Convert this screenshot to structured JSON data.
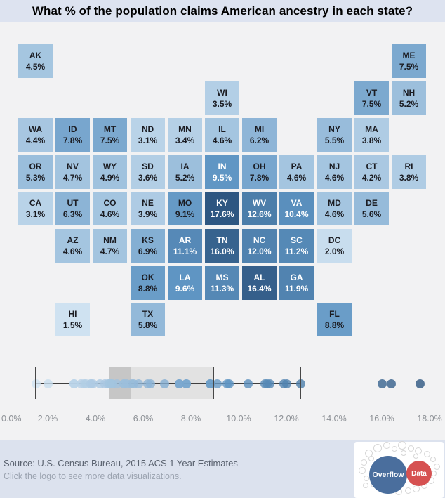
{
  "title": "What % of the population claims American ancestry in each state?",
  "chart_data": [
    {
      "type": "heatmap",
      "subtype": "us-state-tile-grid-map",
      "title": "What % of the population claims American ancestry in each state?",
      "value_format": "percent_one_decimal",
      "color_scale": {
        "min_value": 1.5,
        "mid_value": 9.5,
        "max_value": 17.6,
        "min_color": "#cfe2f1",
        "mid_color": "#6096c4",
        "max_color": "#2d5681",
        "white_text_threshold": 9.5
      },
      "states": [
        {
          "abbr": "AK",
          "value": 4.5,
          "col": 0,
          "row": 0
        },
        {
          "abbr": "ME",
          "value": 7.5,
          "col": 10,
          "row": 0
        },
        {
          "abbr": "WI",
          "value": 3.5,
          "col": 5,
          "row": 1
        },
        {
          "abbr": "VT",
          "value": 7.5,
          "col": 9,
          "row": 1
        },
        {
          "abbr": "NH",
          "value": 5.2,
          "col": 10,
          "row": 1
        },
        {
          "abbr": "WA",
          "value": 4.4,
          "col": 0,
          "row": 2
        },
        {
          "abbr": "ID",
          "value": 7.8,
          "col": 1,
          "row": 2
        },
        {
          "abbr": "MT",
          "value": 7.5,
          "col": 2,
          "row": 2
        },
        {
          "abbr": "ND",
          "value": 3.1,
          "col": 3,
          "row": 2
        },
        {
          "abbr": "MN",
          "value": 3.4,
          "col": 4,
          "row": 2
        },
        {
          "abbr": "IL",
          "value": 4.6,
          "col": 5,
          "row": 2
        },
        {
          "abbr": "MI",
          "value": 6.2,
          "col": 6,
          "row": 2
        },
        {
          "abbr": "NY",
          "value": 5.5,
          "col": 8,
          "row": 2
        },
        {
          "abbr": "MA",
          "value": 3.8,
          "col": 9,
          "row": 2
        },
        {
          "abbr": "OR",
          "value": 5.3,
          "col": 0,
          "row": 3
        },
        {
          "abbr": "NV",
          "value": 4.7,
          "col": 1,
          "row": 3
        },
        {
          "abbr": "WY",
          "value": 4.9,
          "col": 2,
          "row": 3
        },
        {
          "abbr": "SD",
          "value": 3.6,
          "col": 3,
          "row": 3
        },
        {
          "abbr": "IA",
          "value": 5.2,
          "col": 4,
          "row": 3
        },
        {
          "abbr": "IN",
          "value": 9.5,
          "col": 5,
          "row": 3
        },
        {
          "abbr": "OH",
          "value": 7.8,
          "col": 6,
          "row": 3
        },
        {
          "abbr": "PA",
          "value": 4.6,
          "col": 7,
          "row": 3
        },
        {
          "abbr": "NJ",
          "value": 4.6,
          "col": 8,
          "row": 3
        },
        {
          "abbr": "CT",
          "value": 4.2,
          "col": 9,
          "row": 3
        },
        {
          "abbr": "RI",
          "value": 3.8,
          "col": 10,
          "row": 3
        },
        {
          "abbr": "CA",
          "value": 3.1,
          "col": 0,
          "row": 4
        },
        {
          "abbr": "UT",
          "value": 6.3,
          "col": 1,
          "row": 4
        },
        {
          "abbr": "CO",
          "value": 4.6,
          "col": 2,
          "row": 4
        },
        {
          "abbr": "NE",
          "value": 3.9,
          "col": 3,
          "row": 4
        },
        {
          "abbr": "MO",
          "value": 9.1,
          "col": 4,
          "row": 4
        },
        {
          "abbr": "KY",
          "value": 17.6,
          "col": 5,
          "row": 4
        },
        {
          "abbr": "WV",
          "value": 12.6,
          "col": 6,
          "row": 4
        },
        {
          "abbr": "VA",
          "value": 10.4,
          "col": 7,
          "row": 4
        },
        {
          "abbr": "MD",
          "value": 4.6,
          "col": 8,
          "row": 4
        },
        {
          "abbr": "DE",
          "value": 5.6,
          "col": 9,
          "row": 4
        },
        {
          "abbr": "AZ",
          "value": 4.6,
          "col": 1,
          "row": 5
        },
        {
          "abbr": "NM",
          "value": 4.7,
          "col": 2,
          "row": 5
        },
        {
          "abbr": "KS",
          "value": 6.9,
          "col": 3,
          "row": 5
        },
        {
          "abbr": "AR",
          "value": 11.1,
          "col": 4,
          "row": 5
        },
        {
          "abbr": "TN",
          "value": 16.0,
          "col": 5,
          "row": 5
        },
        {
          "abbr": "NC",
          "value": 12.0,
          "col": 6,
          "row": 5
        },
        {
          "abbr": "SC",
          "value": 11.2,
          "col": 7,
          "row": 5
        },
        {
          "abbr": "DC",
          "value": 2.0,
          "col": 8,
          "row": 5
        },
        {
          "abbr": "OK",
          "value": 8.8,
          "col": 3,
          "row": 6
        },
        {
          "abbr": "LA",
          "value": 9.6,
          "col": 4,
          "row": 6
        },
        {
          "abbr": "MS",
          "value": 11.3,
          "col": 5,
          "row": 6
        },
        {
          "abbr": "AL",
          "value": 16.4,
          "col": 6,
          "row": 6
        },
        {
          "abbr": "GA",
          "value": 11.9,
          "col": 7,
          "row": 6
        },
        {
          "abbr": "HI",
          "value": 1.5,
          "col": 1,
          "row": 7
        },
        {
          "abbr": "TX",
          "value": 5.8,
          "col": 3,
          "row": 7
        },
        {
          "abbr": "FL",
          "value": 8.8,
          "col": 8,
          "row": 7
        }
      ]
    },
    {
      "type": "boxplot",
      "orientation": "horizontal",
      "axis": {
        "min": 0,
        "max": 18.6,
        "tick_step": 2,
        "tick_values": [
          0,
          2,
          4,
          6,
          8,
          10,
          12,
          14,
          16,
          18
        ],
        "tick_labels": [
          "0.0%",
          "2.0%",
          "4.0%",
          "6.0%",
          "8.0%",
          "10.0%",
          "12.0%",
          "14.0%",
          "16.0%",
          "18.0%"
        ]
      },
      "whisker_low": 1.5,
      "q1": 4.55,
      "median": 5.5,
      "q3": 8.95,
      "whisker_high": 12.6,
      "outliers": [
        16.0,
        16.4,
        17.6
      ],
      "points": "one dot per state value, colored by the map color scale"
    }
  ],
  "footer": {
    "source": "Source: U.S. Census Bureau, 2015 ACS 1 Year Estimates",
    "hint": "Click the logo to see more data visualizations.",
    "logo": {
      "primary_label": "Overflow",
      "secondary_label": "Data",
      "primary_color": "#4a6e9d",
      "secondary_color": "#d65151"
    }
  },
  "theme": {
    "band_background": "#dde3f0",
    "page_background": "#f2f2f3",
    "box_light": "#e2e2e2",
    "box_dark": "#c6c6c6",
    "axis_label_color": "#8d9196"
  }
}
